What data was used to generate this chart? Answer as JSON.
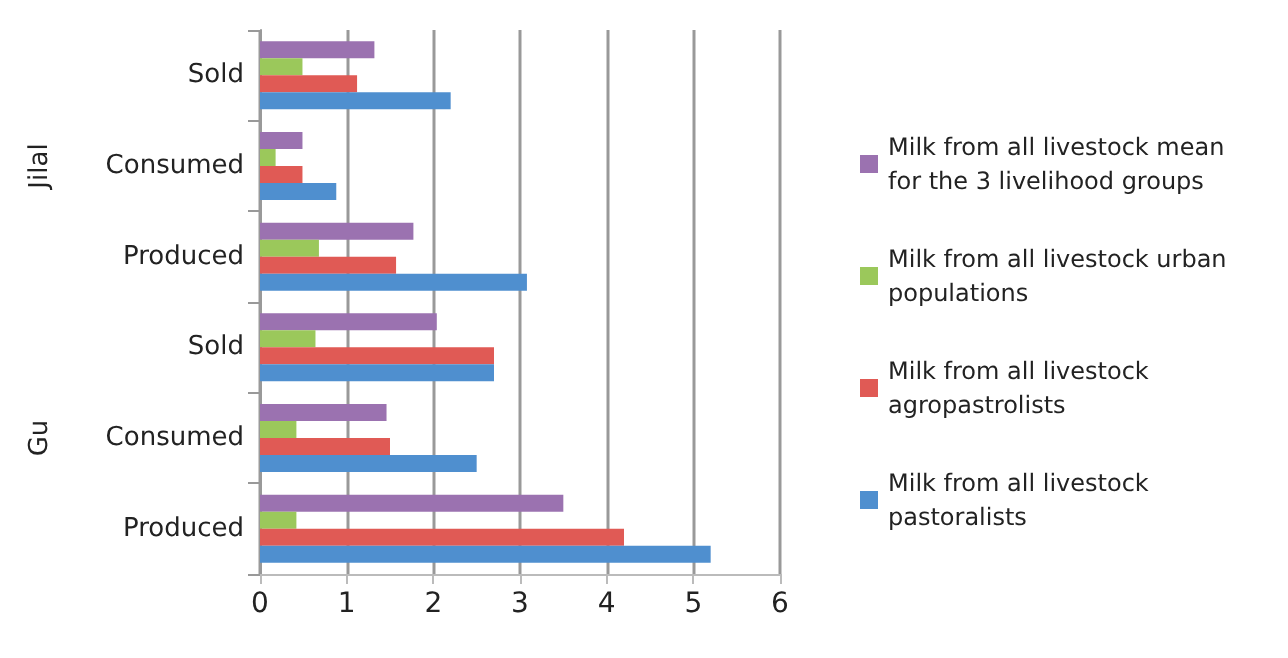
{
  "chart_data": {
    "type": "bar",
    "orientation": "horizontal",
    "categories": [
      "Sold",
      "Consumed",
      "Produced",
      "Sold",
      "Consumed",
      "Produced"
    ],
    "annotations": [
      "Jilal",
      "Gu"
    ],
    "series": [
      {
        "name": "Milk from all livestock mean for the 3 livelihood groups",
        "color": "#9b72b0",
        "values": [
          1.32,
          0.49,
          1.77,
          2.04,
          1.46,
          3.5
        ]
      },
      {
        "name": "Milk from all livestock urban populations",
        "color": "#9bc85b",
        "values": [
          0.49,
          0.18,
          0.68,
          0.64,
          0.42,
          0.42
        ]
      },
      {
        "name": "Milk from all livestock agropastrolists",
        "color": "#e05a55",
        "values": [
          1.12,
          0.49,
          1.57,
          2.7,
          1.5,
          4.2
        ]
      },
      {
        "name": "Milk from all livestock pastoralists",
        "color": "#4f8fcf",
        "values": [
          2.2,
          0.88,
          3.08,
          2.7,
          2.5,
          5.2
        ]
      }
    ],
    "xlim": [
      0,
      6
    ],
    "xticks": [
      0,
      1,
      2,
      3,
      4,
      5,
      6
    ],
    "grid": "x",
    "legend": "right"
  }
}
